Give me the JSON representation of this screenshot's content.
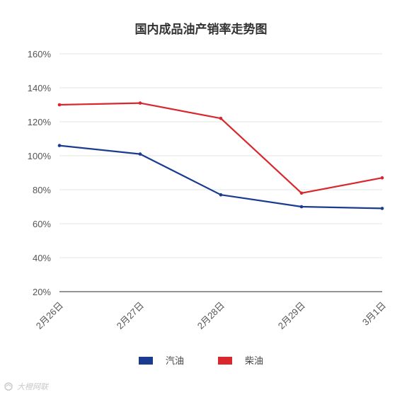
{
  "chart_data": {
    "type": "line",
    "title": "国内成品油产销率走势图",
    "categories": [
      "2月26日",
      "2月27日",
      "2月28日",
      "2月29日",
      "3月1日"
    ],
    "series": [
      {
        "name": "汽油",
        "color": "#1a3b8f",
        "values": [
          106,
          101,
          77,
          70,
          69
        ]
      },
      {
        "name": "柴油",
        "color": "#d8272d",
        "values": [
          130,
          131,
          122,
          78,
          87
        ]
      }
    ],
    "ylim": [
      20,
      160
    ],
    "yticks": [
      20,
      40,
      60,
      80,
      100,
      120,
      140,
      160
    ],
    "y_unit": "%",
    "grid": true,
    "legend_position": "bottom-center"
  },
  "watermark": {
    "text": "大橙网联",
    "icon": "logo-icon"
  }
}
